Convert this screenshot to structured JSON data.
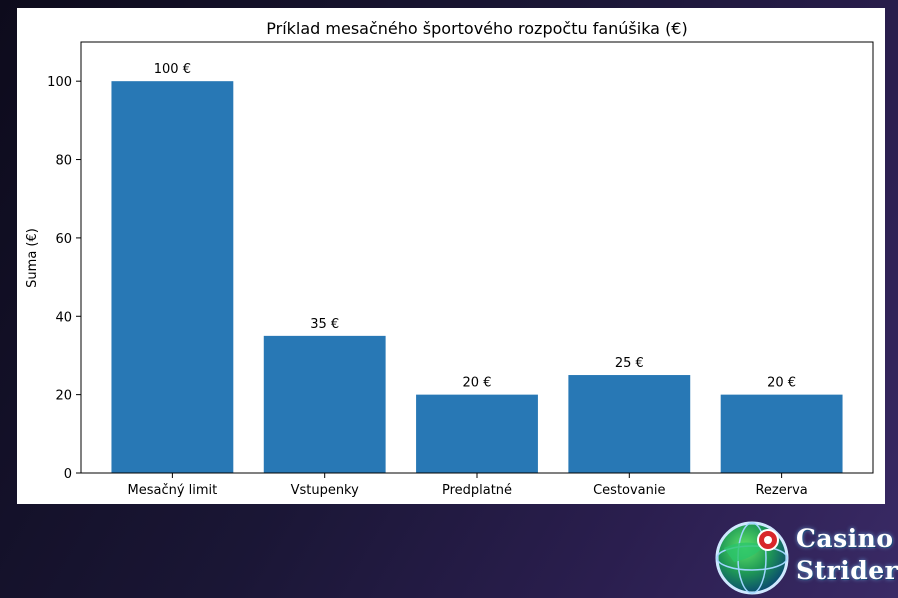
{
  "chart_data": {
    "type": "bar",
    "title": "Príklad mesačného športového rozpočtu fanúšika (€)",
    "xlabel": "",
    "ylabel": "Suma (€)",
    "categories": [
      "Mesačný limit",
      "Vstupenky",
      "Predplatné",
      "Cestovanie",
      "Rezerva"
    ],
    "values": [
      100,
      35,
      20,
      25,
      20
    ],
    "data_labels": [
      "100 €",
      "35 €",
      "20 €",
      "25 €",
      "20 €"
    ],
    "ylim": [
      0,
      110
    ],
    "yticks": [
      0,
      20,
      40,
      60,
      80,
      100
    ],
    "grid": false,
    "bar_color": "#2878b5"
  },
  "logo": {
    "line1": "Casino",
    "line2": "Strider",
    "icon": "globe-icon"
  }
}
